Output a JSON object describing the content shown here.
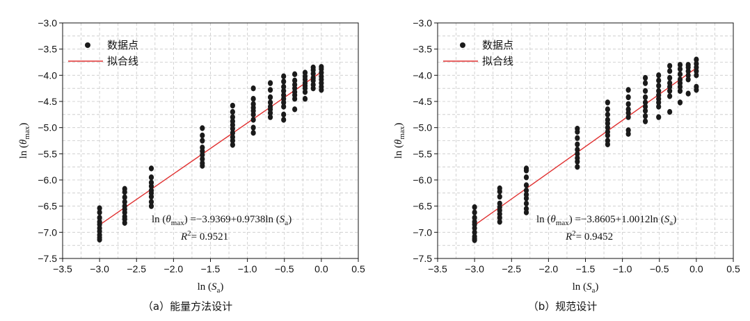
{
  "chart_data": [
    {
      "type": "scatter",
      "caption": "（a）能量方法设计",
      "xlabel": "ln (S_a)",
      "ylabel": "ln (θ_max)",
      "xlim": [
        -3.5,
        0.5
      ],
      "ylim": [
        -7.5,
        -3.0
      ],
      "xticks": [
        -3.5,
        -3.0,
        -2.5,
        -2.0,
        -1.5,
        -1.0,
        -0.5,
        0.0,
        0.5
      ],
      "xtick_labels": [
        "−3.5",
        "−3.0",
        "−2.5",
        "−2.0",
        "−1.5",
        "−1.0",
        "−0.5",
        "0.0",
        "0.5"
      ],
      "yticks": [
        -3.0,
        -3.5,
        -4.0,
        -4.5,
        -5.0,
        -5.5,
        -6.0,
        -6.5,
        -7.0,
        -7.5
      ],
      "ytick_labels": [
        "−3.0",
        "−3.5",
        "−4.0",
        "−4.5",
        "−5.0",
        "−5.5",
        "−6.0",
        "−6.5",
        "−7.0",
        "−7.5"
      ],
      "grid": true,
      "legend": {
        "placement": "top-left",
        "points_label": "数据点",
        "fit_label": "拟合线"
      },
      "colors": {
        "points": "#1a1a1a",
        "fit": "#e03030",
        "grid": "#c8c8c8"
      },
      "fit": {
        "intercept": -3.9369,
        "slope": 0.9738,
        "x_range": [
          -3.0,
          0.0
        ]
      },
      "equation": {
        "line1": {
          "lhs_open": "ln (",
          "theta": "θ",
          "sub": "max",
          "lhs_close": ")",
          "rhs_pre": " =−3.9369+0.9738ln (",
          "s": "S",
          "s_sub": "a",
          "rhs_close": ")"
        },
        "line2": {
          "r": "R",
          "sup": "2",
          "value": "= 0.9521"
        }
      },
      "series": [
        {
          "name": "数据点",
          "points": [
            [
              -3.0,
              -6.54
            ],
            [
              -3.0,
              -6.62
            ],
            [
              -3.0,
              -6.72
            ],
            [
              -3.0,
              -6.8
            ],
            [
              -3.0,
              -6.85
            ],
            [
              -3.0,
              -6.92
            ],
            [
              -3.0,
              -6.98
            ],
            [
              -3.0,
              -7.05
            ],
            [
              -3.0,
              -7.1
            ],
            [
              -3.0,
              -7.14
            ],
            [
              -2.66,
              -6.17
            ],
            [
              -2.66,
              -6.23
            ],
            [
              -2.66,
              -6.33
            ],
            [
              -2.66,
              -6.42
            ],
            [
              -2.66,
              -6.5
            ],
            [
              -2.66,
              -6.56
            ],
            [
              -2.66,
              -6.62
            ],
            [
              -2.66,
              -6.7
            ],
            [
              -2.66,
              -6.75
            ],
            [
              -2.66,
              -6.82
            ],
            [
              -2.3,
              -5.78
            ],
            [
              -2.3,
              -5.95
            ],
            [
              -2.3,
              -6.05
            ],
            [
              -2.3,
              -6.12
            ],
            [
              -2.3,
              -6.2
            ],
            [
              -2.3,
              -6.25
            ],
            [
              -2.3,
              -6.32
            ],
            [
              -2.3,
              -6.42
            ],
            [
              -2.3,
              -6.5
            ],
            [
              -1.61,
              -5.01
            ],
            [
              -1.61,
              -5.15
            ],
            [
              -1.61,
              -5.25
            ],
            [
              -1.61,
              -5.38
            ],
            [
              -1.61,
              -5.45
            ],
            [
              -1.61,
              -5.52
            ],
            [
              -1.61,
              -5.6
            ],
            [
              -1.61,
              -5.68
            ],
            [
              -1.61,
              -5.73
            ],
            [
              -1.2,
              -4.58
            ],
            [
              -1.2,
              -4.7
            ],
            [
              -1.2,
              -4.8
            ],
            [
              -1.2,
              -4.88
            ],
            [
              -1.2,
              -4.95
            ],
            [
              -1.2,
              -5.02
            ],
            [
              -1.2,
              -5.1
            ],
            [
              -1.2,
              -5.18
            ],
            [
              -1.2,
              -5.25
            ],
            [
              -1.2,
              -5.33
            ],
            [
              -0.92,
              -4.25
            ],
            [
              -0.92,
              -4.45
            ],
            [
              -0.92,
              -4.55
            ],
            [
              -0.92,
              -4.62
            ],
            [
              -0.92,
              -4.68
            ],
            [
              -0.92,
              -4.75
            ],
            [
              -0.92,
              -4.85
            ],
            [
              -0.92,
              -5.0
            ],
            [
              -0.92,
              -5.1
            ],
            [
              -0.69,
              -4.15
            ],
            [
              -0.69,
              -4.28
            ],
            [
              -0.69,
              -4.42
            ],
            [
              -0.69,
              -4.52
            ],
            [
              -0.69,
              -4.6
            ],
            [
              -0.69,
              -4.65
            ],
            [
              -0.69,
              -4.72
            ],
            [
              -0.69,
              -4.8
            ],
            [
              -0.51,
              -4.02
            ],
            [
              -0.51,
              -4.12
            ],
            [
              -0.51,
              -4.22
            ],
            [
              -0.51,
              -4.3
            ],
            [
              -0.51,
              -4.38
            ],
            [
              -0.51,
              -4.45
            ],
            [
              -0.51,
              -4.52
            ],
            [
              -0.51,
              -4.6
            ],
            [
              -0.51,
              -4.75
            ],
            [
              -0.51,
              -4.85
            ],
            [
              -0.36,
              -3.98
            ],
            [
              -0.36,
              -4.1
            ],
            [
              -0.36,
              -4.18
            ],
            [
              -0.36,
              -4.25
            ],
            [
              -0.36,
              -4.32
            ],
            [
              -0.36,
              -4.38
            ],
            [
              -0.36,
              -4.45
            ],
            [
              -0.36,
              -4.65
            ],
            [
              -0.22,
              -3.95
            ],
            [
              -0.22,
              -4.02
            ],
            [
              -0.22,
              -4.08
            ],
            [
              -0.22,
              -4.15
            ],
            [
              -0.22,
              -4.2
            ],
            [
              -0.22,
              -4.25
            ],
            [
              -0.22,
              -4.32
            ],
            [
              -0.22,
              -4.45
            ],
            [
              -0.11,
              -3.85
            ],
            [
              -0.11,
              -3.9
            ],
            [
              -0.11,
              -3.97
            ],
            [
              -0.11,
              -4.05
            ],
            [
              -0.11,
              -4.1
            ],
            [
              -0.11,
              -4.18
            ],
            [
              -0.11,
              -4.25
            ],
            [
              0.0,
              -3.84
            ],
            [
              0.0,
              -3.88
            ],
            [
              0.0,
              -3.95
            ],
            [
              0.0,
              -4.02
            ],
            [
              0.0,
              -4.08
            ],
            [
              0.0,
              -4.15
            ],
            [
              0.0,
              -4.22
            ],
            [
              0.0,
              -4.28
            ]
          ]
        }
      ]
    },
    {
      "type": "scatter",
      "caption": "（b）规范设计",
      "xlabel": "ln (S_a)",
      "ylabel": "ln (θ_max)",
      "xlim": [
        -3.5,
        0.5
      ],
      "ylim": [
        -7.5,
        -3.0
      ],
      "xticks": [
        -3.5,
        -3.0,
        -2.5,
        -2.0,
        -1.5,
        -1.0,
        -0.5,
        0.0,
        0.5
      ],
      "xtick_labels": [
        "−3.5",
        "−3.0",
        "−2.5",
        "−2.0",
        "−1.5",
        "−1.0",
        "−0.5",
        "0.0",
        "0.5"
      ],
      "yticks": [
        -3.0,
        -3.5,
        -4.0,
        -4.5,
        -5.0,
        -5.5,
        -6.0,
        -6.5,
        -7.0,
        -7.5
      ],
      "ytick_labels": [
        "−3.0",
        "−3.5",
        "−4.0",
        "−4.5",
        "−5.0",
        "−5.5",
        "−6.0",
        "−6.5",
        "−7.0",
        "−7.5"
      ],
      "grid": true,
      "legend": {
        "placement": "top-left",
        "points_label": "数据点",
        "fit_label": "拟合线"
      },
      "colors": {
        "points": "#1a1a1a",
        "fit": "#e03030",
        "grid": "#c8c8c8"
      },
      "fit": {
        "intercept": -3.8605,
        "slope": 1.0012,
        "x_range": [
          -3.0,
          0.0
        ]
      },
      "equation": {
        "line1": {
          "lhs_open": "ln (",
          "theta": "θ",
          "sub": "max",
          "lhs_close": ")",
          "rhs_pre": " =−3.8605+1.0012ln (",
          "s": "S",
          "s_sub": "a",
          "rhs_close": ")"
        },
        "line2": {
          "r": "R",
          "sup": "2",
          "value": "= 0.9452"
        }
      },
      "series": [
        {
          "name": "数据点",
          "points": [
            [
              -3.0,
              -6.52
            ],
            [
              -3.0,
              -6.62
            ],
            [
              -3.0,
              -6.72
            ],
            [
              -3.0,
              -6.8
            ],
            [
              -3.0,
              -6.85
            ],
            [
              -3.0,
              -6.92
            ],
            [
              -3.0,
              -7.0
            ],
            [
              -3.0,
              -7.08
            ],
            [
              -3.0,
              -7.12
            ],
            [
              -3.0,
              -7.15
            ],
            [
              -2.66,
              -6.16
            ],
            [
              -2.66,
              -6.22
            ],
            [
              -2.66,
              -6.32
            ],
            [
              -2.66,
              -6.45
            ],
            [
              -2.66,
              -6.52
            ],
            [
              -2.66,
              -6.58
            ],
            [
              -2.66,
              -6.65
            ],
            [
              -2.66,
              -6.72
            ],
            [
              -2.66,
              -6.8
            ],
            [
              -2.3,
              -5.78
            ],
            [
              -2.3,
              -5.82
            ],
            [
              -2.3,
              -5.95
            ],
            [
              -2.3,
              -6.1
            ],
            [
              -2.3,
              -6.2
            ],
            [
              -2.3,
              -6.28
            ],
            [
              -2.3,
              -6.35
            ],
            [
              -2.3,
              -6.45
            ],
            [
              -2.3,
              -6.55
            ],
            [
              -2.3,
              -6.62
            ],
            [
              -1.61,
              -5.02
            ],
            [
              -1.61,
              -5.08
            ],
            [
              -1.61,
              -5.2
            ],
            [
              -1.61,
              -5.32
            ],
            [
              -1.61,
              -5.42
            ],
            [
              -1.61,
              -5.5
            ],
            [
              -1.61,
              -5.58
            ],
            [
              -1.61,
              -5.65
            ],
            [
              -1.61,
              -5.75
            ],
            [
              -1.2,
              -4.52
            ],
            [
              -1.2,
              -4.65
            ],
            [
              -1.2,
              -4.75
            ],
            [
              -1.2,
              -4.85
            ],
            [
              -1.2,
              -4.92
            ],
            [
              -1.2,
              -5.0
            ],
            [
              -1.2,
              -5.08
            ],
            [
              -1.2,
              -5.15
            ],
            [
              -1.2,
              -5.25
            ],
            [
              -1.2,
              -5.32
            ],
            [
              -0.92,
              -4.28
            ],
            [
              -0.92,
              -4.42
            ],
            [
              -0.92,
              -4.55
            ],
            [
              -0.92,
              -4.65
            ],
            [
              -0.92,
              -4.72
            ],
            [
              -0.92,
              -4.8
            ],
            [
              -0.92,
              -5.05
            ],
            [
              -0.92,
              -5.12
            ],
            [
              -0.69,
              -4.05
            ],
            [
              -0.69,
              -4.15
            ],
            [
              -0.69,
              -4.3
            ],
            [
              -0.69,
              -4.42
            ],
            [
              -0.69,
              -4.52
            ],
            [
              -0.69,
              -4.6
            ],
            [
              -0.69,
              -4.68
            ],
            [
              -0.69,
              -4.78
            ],
            [
              -0.69,
              -4.88
            ],
            [
              -0.51,
              -4.0
            ],
            [
              -0.51,
              -4.1
            ],
            [
              -0.51,
              -4.2
            ],
            [
              -0.51,
              -4.3
            ],
            [
              -0.51,
              -4.38
            ],
            [
              -0.51,
              -4.45
            ],
            [
              -0.51,
              -4.52
            ],
            [
              -0.51,
              -4.6
            ],
            [
              -0.51,
              -4.8
            ],
            [
              -0.36,
              -3.82
            ],
            [
              -0.36,
              -3.92
            ],
            [
              -0.36,
              -4.05
            ],
            [
              -0.36,
              -4.15
            ],
            [
              -0.36,
              -4.22
            ],
            [
              -0.36,
              -4.3
            ],
            [
              -0.36,
              -4.4
            ],
            [
              -0.36,
              -4.7
            ],
            [
              -0.22,
              -3.8
            ],
            [
              -0.22,
              -3.88
            ],
            [
              -0.22,
              -3.98
            ],
            [
              -0.22,
              -4.08
            ],
            [
              -0.22,
              -4.15
            ],
            [
              -0.22,
              -4.22
            ],
            [
              -0.22,
              -4.3
            ],
            [
              -0.22,
              -4.52
            ],
            [
              -0.11,
              -3.8
            ],
            [
              -0.11,
              -3.85
            ],
            [
              -0.11,
              -3.92
            ],
            [
              -0.11,
              -4.0
            ],
            [
              -0.11,
              -4.08
            ],
            [
              -0.11,
              -4.35
            ],
            [
              0.0,
              -3.7
            ],
            [
              0.0,
              -3.78
            ],
            [
              0.0,
              -3.85
            ],
            [
              0.0,
              -3.92
            ],
            [
              0.0,
              -4.0
            ],
            [
              0.0,
              -4.22
            ],
            [
              0.0,
              -4.28
            ]
          ]
        }
      ]
    }
  ]
}
